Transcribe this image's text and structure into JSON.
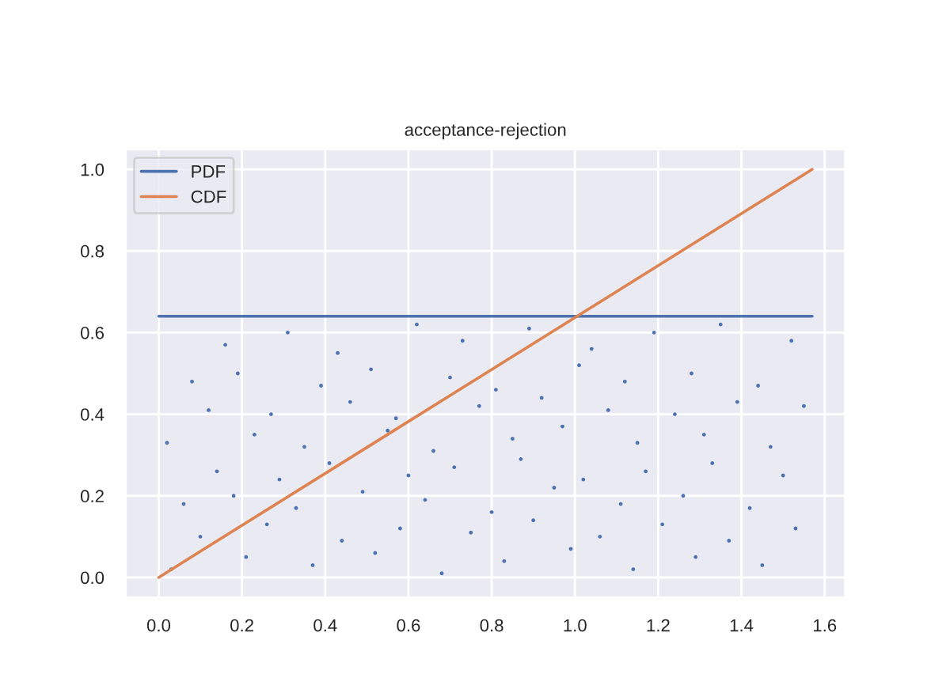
{
  "chart_data": {
    "type": "line",
    "title": "acceptance-rejection",
    "series": [
      {
        "type": "scatter",
        "color": "#4c72b0",
        "x": [
          0.03,
          0.21,
          0.37,
          0.52,
          0.68,
          0.83,
          0.99,
          1.14,
          1.29,
          1.45,
          0.1,
          0.26,
          0.44,
          0.58,
          0.75,
          0.9,
          1.06,
          1.21,
          1.37,
          1.53,
          0.06,
          0.18,
          0.33,
          0.49,
          0.64,
          0.8,
          0.95,
          1.11,
          1.26,
          1.42,
          0.14,
          0.29,
          0.41,
          0.6,
          0.71,
          0.87,
          1.02,
          1.17,
          1.33,
          1.5,
          0.02,
          0.23,
          0.35,
          0.55,
          0.66,
          0.85,
          0.97,
          1.15,
          1.31,
          1.47,
          0.12,
          0.27,
          0.46,
          0.57,
          0.77,
          0.92,
          1.08,
          1.24,
          1.39,
          1.55,
          0.08,
          0.19,
          0.39,
          0.51,
          0.7,
          0.81,
          1.01,
          1.12,
          1.28,
          1.44,
          0.16,
          0.31,
          0.43,
          0.62,
          0.73,
          0.89,
          1.04,
          1.19,
          1.35,
          1.52
        ],
        "values": [
          0.02,
          0.05,
          0.03,
          0.06,
          0.01,
          0.04,
          0.07,
          0.02,
          0.05,
          0.03,
          0.1,
          0.13,
          0.09,
          0.12,
          0.11,
          0.14,
          0.1,
          0.13,
          0.09,
          0.12,
          0.18,
          0.2,
          0.17,
          0.21,
          0.19,
          0.16,
          0.22,
          0.18,
          0.2,
          0.17,
          0.26,
          0.24,
          0.28,
          0.25,
          0.27,
          0.29,
          0.24,
          0.26,
          0.28,
          0.25,
          0.33,
          0.35,
          0.32,
          0.36,
          0.31,
          0.34,
          0.37,
          0.33,
          0.35,
          0.32,
          0.41,
          0.4,
          0.43,
          0.39,
          0.42,
          0.44,
          0.41,
          0.4,
          0.43,
          0.42,
          0.48,
          0.5,
          0.47,
          0.51,
          0.49,
          0.46,
          0.52,
          0.48,
          0.5,
          0.47,
          0.57,
          0.6,
          0.55,
          0.62,
          0.58,
          0.61,
          0.56,
          0.6,
          0.62,
          0.58
        ]
      },
      {
        "name": "PDF",
        "color": "#4c72b0",
        "x": [
          0,
          1.57
        ],
        "values": [
          0.64,
          0.64
        ]
      },
      {
        "name": "CDF",
        "color": "#dd8452",
        "x": [
          0,
          1.57
        ],
        "values": [
          0,
          1
        ]
      }
    ],
    "xlim": [
      -0.08,
      1.65
    ],
    "ylim": [
      -0.05,
      1.05
    ],
    "xticks": [
      {
        "value": 0,
        "label": "0.0"
      },
      0.2,
      0.4,
      0.6,
      0.8,
      {
        "value": 1,
        "label": "1.0"
      },
      1.2,
      1.4,
      1.6
    ],
    "yticks": [
      {
        "value": 0,
        "label": "0.0"
      },
      0.2,
      0.4,
      0.6,
      0.8,
      {
        "value": 1,
        "label": "1.0"
      }
    ],
    "grid": true,
    "legend": "top left"
  }
}
